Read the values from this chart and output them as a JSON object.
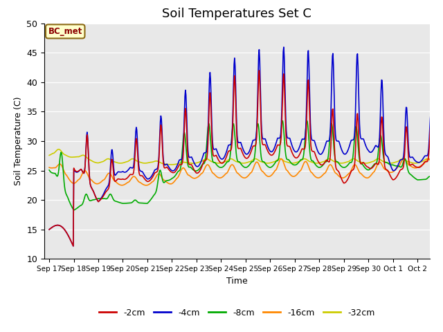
{
  "title": "Soil Temperatures Set C",
  "xlabel": "Time",
  "ylabel": "Soil Temperature (C)",
  "ylim": [
    10,
    50
  ],
  "annotation": "BC_met",
  "legend_labels": [
    "-2cm",
    "-4cm",
    "-8cm",
    "-16cm",
    "-32cm"
  ],
  "legend_colors": [
    "#cc0000",
    "#0000cc",
    "#00aa00",
    "#ff8800",
    "#cccc00"
  ],
  "xtick_labels": [
    "Sep 17",
    "Sep 18",
    "Sep 19",
    "Sep 20",
    "Sep 21",
    "Sep 22",
    "Sep 23",
    "Sep 24",
    "Sep 25",
    "Sep 26",
    "Sep 27",
    "Sep 28",
    "Sep 29",
    "Sep 30",
    "Oct 1",
    "Oct 2"
  ],
  "xtick_positions": [
    0,
    1,
    2,
    3,
    4,
    5,
    6,
    7,
    8,
    9,
    10,
    11,
    12,
    13,
    14,
    15
  ],
  "ytick_labels": [
    "10",
    "15",
    "20",
    "25",
    "30",
    "35",
    "40",
    "45",
    "50"
  ],
  "ytick_positions": [
    10,
    15,
    20,
    25,
    30,
    35,
    40,
    45,
    50
  ],
  "background_color": "#e8e8e8",
  "figure_color": "#ffffff",
  "line_width": 1.2
}
